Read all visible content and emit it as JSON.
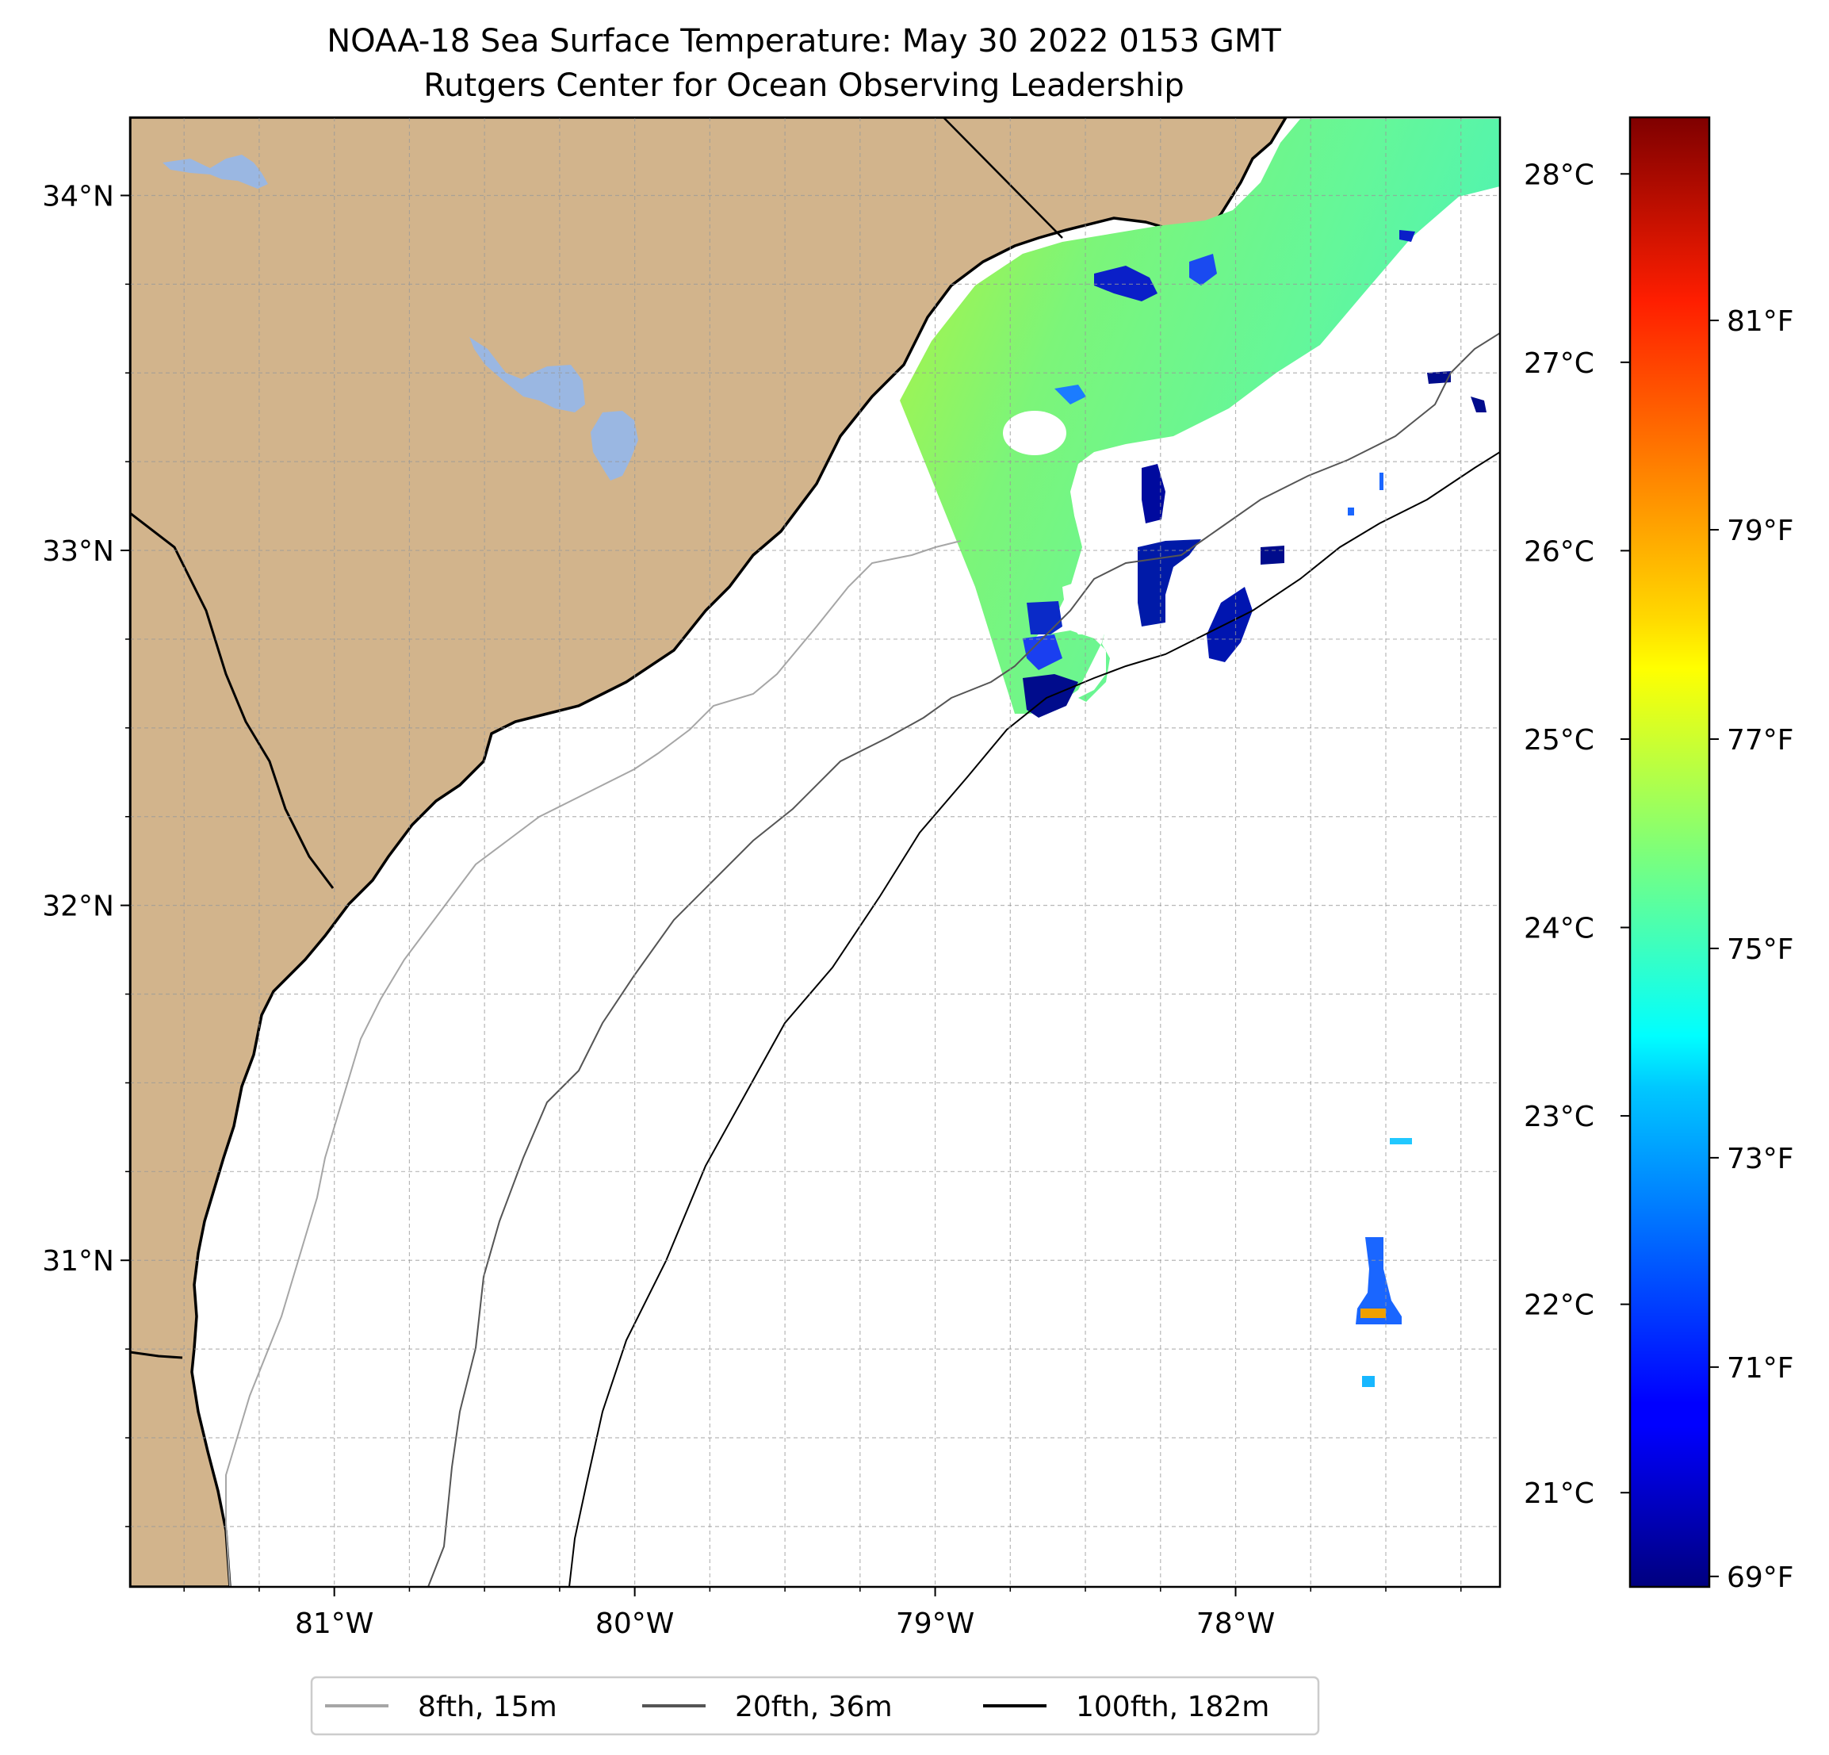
{
  "title": {
    "line1": "NOAA-18 Sea Surface Temperature: May 30 2022 0153 GMT",
    "line2": "Rutgers Center for Ocean Observing Leadership"
  },
  "map": {
    "lon_range": [
      -81.68,
      -77.12
    ],
    "lat_range": [
      30.08,
      34.22
    ],
    "lon_ticks": [
      {
        "value": -81,
        "label": "81°W"
      },
      {
        "value": -80,
        "label": "80°W"
      },
      {
        "value": -79,
        "label": "79°W"
      },
      {
        "value": -78,
        "label": "78°W"
      }
    ],
    "lat_ticks": [
      {
        "value": 34,
        "label": "34°N"
      },
      {
        "value": 33,
        "label": "33°N"
      },
      {
        "value": 32,
        "label": "32°N"
      },
      {
        "value": 31,
        "label": "31°N"
      }
    ],
    "gridlines": "dashed, every 0.25°",
    "land_color": "#d2b48c",
    "water_body_color": "#9ab7e2",
    "ocean_color": "#ffffff"
  },
  "colorbar": {
    "colormap": "jet",
    "celsius_range": [
      20.5,
      28.3
    ],
    "celsius_ticks": [
      {
        "value": 28,
        "label": "28°C"
      },
      {
        "value": 27,
        "label": "27°C"
      },
      {
        "value": 26,
        "label": "26°C"
      },
      {
        "value": 25,
        "label": "25°C"
      },
      {
        "value": 24,
        "label": "24°C"
      },
      {
        "value": 23,
        "label": "23°C"
      },
      {
        "value": 22,
        "label": "22°C"
      },
      {
        "value": 21,
        "label": "21°C"
      }
    ],
    "fahrenheit_ticks": [
      {
        "value": 81,
        "label": "81°F"
      },
      {
        "value": 79,
        "label": "79°F"
      },
      {
        "value": 77,
        "label": "77°F"
      },
      {
        "value": 75,
        "label": "75°F"
      },
      {
        "value": 73,
        "label": "73°F"
      },
      {
        "value": 71,
        "label": "71°F"
      },
      {
        "value": 69,
        "label": "69°F"
      }
    ]
  },
  "legend": {
    "entries": [
      {
        "label": "8fth, 15m",
        "color": "#a6a6a6"
      },
      {
        "label": "20fth, 36m",
        "color": "#555555"
      },
      {
        "label": "100fth, 182m",
        "color": "#000000"
      }
    ]
  }
}
